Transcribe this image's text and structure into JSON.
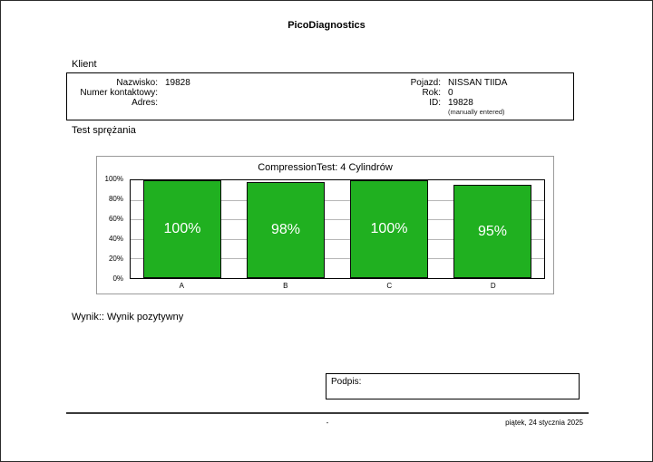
{
  "header": {
    "title": "PicoDiagnostics"
  },
  "client": {
    "section_label": "Klient",
    "left": [
      {
        "label": "Nazwisko:",
        "value": "19828"
      },
      {
        "label": "Numer kontaktowy:",
        "value": ""
      },
      {
        "label": "Adres:",
        "value": ""
      }
    ],
    "right": [
      {
        "label": "Pojazd:",
        "value": "NISSAN TIIDA"
      },
      {
        "label": "Rok:",
        "value": "0"
      },
      {
        "label": "ID:",
        "value": "19828"
      }
    ],
    "note": "(manually entered)"
  },
  "test_section_label": "Test sprężania",
  "chart_data": {
    "type": "bar",
    "title": "CompressionTest: 4 Cylindrów",
    "categories": [
      "A",
      "B",
      "C",
      "D"
    ],
    "values": [
      100,
      98,
      100,
      95
    ],
    "bar_labels": [
      "100%",
      "98%",
      "100%",
      "95%"
    ],
    "y_ticks": [
      "100%",
      "80%",
      "60%",
      "40%",
      "20%",
      "0%"
    ],
    "ylim": [
      0,
      100
    ],
    "grid": true,
    "legend": false,
    "bar_color": "#20b020"
  },
  "result_text": "Wynik:: Wynik pozytywny",
  "signature_label": "Podpis:",
  "footer": {
    "center": "-",
    "date": "piątek, 24 stycznia 2025"
  }
}
